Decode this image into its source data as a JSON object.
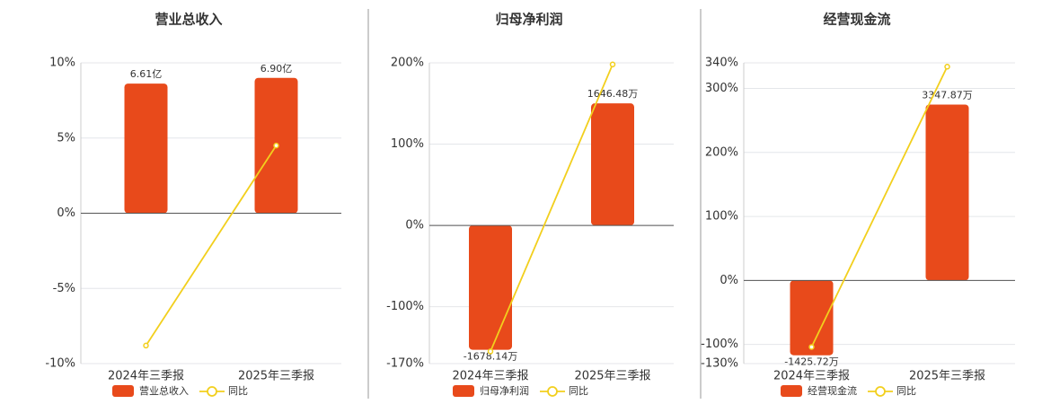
{
  "chart_data": [
    {
      "type": "bar",
      "title": "营业总收入",
      "categories": [
        "2024年三季报",
        "2025年三季报"
      ],
      "series": [
        {
          "name": "营业总收入",
          "type": "bar",
          "color": "#e84a1b",
          "values": [
            6.61,
            6.9
          ],
          "value_labels": [
            "6.61亿",
            "6.90亿"
          ]
        },
        {
          "name": "同比",
          "type": "line",
          "color": "#f2cf1d",
          "values": [
            -8.8,
            4.5
          ]
        }
      ],
      "ylim": [
        -10,
        10
      ],
      "yticks": [
        {
          "value": 10,
          "label": "10%"
        },
        {
          "value": 5,
          "label": "5%"
        },
        {
          "value": 0,
          "label": "0%"
        },
        {
          "value": -5,
          "label": "-5%"
        },
        {
          "value": -10,
          "label": "-10%"
        }
      ],
      "grid": true
    },
    {
      "type": "bar",
      "title": "归母净利润",
      "categories": [
        "2024年三季报",
        "2025年三季报"
      ],
      "series": [
        {
          "name": "归母净利润",
          "type": "bar",
          "color": "#e84a1b",
          "values": [
            -1678.14,
            1646.48
          ],
          "value_labels": [
            "-1678.14万",
            "1646.48万"
          ]
        },
        {
          "name": "同比",
          "type": "line",
          "color": "#f2cf1d",
          "values": [
            -155,
            198
          ]
        }
      ],
      "ylim": [
        -170,
        200
      ],
      "yticks": [
        {
          "value": 200,
          "label": "200%"
        },
        {
          "value": 100,
          "label": "100%"
        },
        {
          "value": 0,
          "label": "0%"
        },
        {
          "value": -100,
          "label": "-100%"
        },
        {
          "value": -170,
          "label": "-170%"
        }
      ],
      "grid": true
    },
    {
      "type": "bar",
      "title": "经营现金流",
      "categories": [
        "2024年三季报",
        "2025年三季报"
      ],
      "series": [
        {
          "name": "经营现金流",
          "type": "bar",
          "color": "#e84a1b",
          "values": [
            -1425.72,
            3347.87
          ],
          "value_labels": [
            "-1425.72万",
            "3347.87万"
          ]
        },
        {
          "name": "同比",
          "type": "line",
          "color": "#f2cf1d",
          "values": [
            -104,
            334
          ]
        }
      ],
      "ylim": [
        -130,
        340
      ],
      "yticks": [
        {
          "value": 340,
          "label": "340%"
        },
        {
          "value": 300,
          "label": "300%"
        },
        {
          "value": 200,
          "label": "200%"
        },
        {
          "value": 100,
          "label": "100%"
        },
        {
          "value": 0,
          "label": "0%"
        },
        {
          "value": -100,
          "label": "-100%"
        },
        {
          "value": -130,
          "label": "-130%"
        }
      ],
      "grid": true
    }
  ]
}
